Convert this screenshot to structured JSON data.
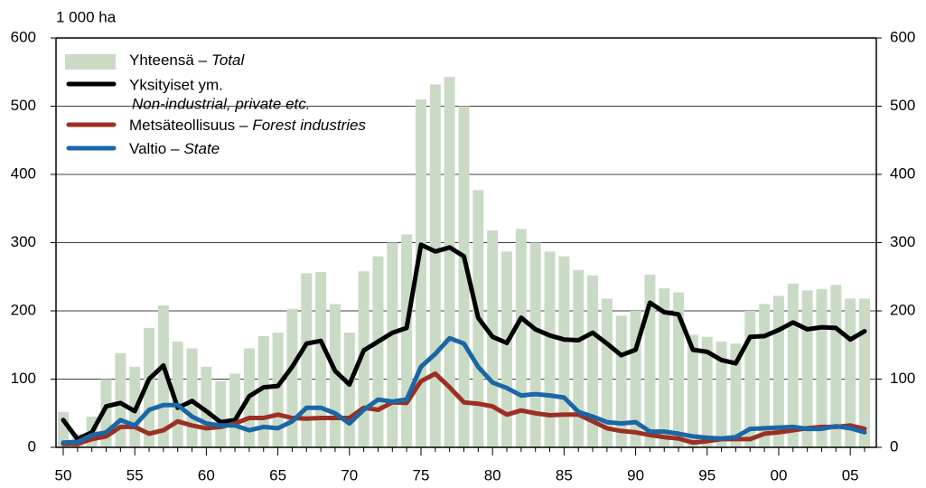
{
  "chart_data": {
    "type": "bar_line",
    "y_label": "1 000 ha",
    "categories": [
      "50",
      null,
      null,
      null,
      null,
      "55",
      null,
      null,
      null,
      null,
      "60",
      null,
      null,
      null,
      null,
      "65",
      null,
      null,
      null,
      null,
      "70",
      null,
      null,
      null,
      null,
      "75",
      null,
      null,
      null,
      null,
      "80",
      null,
      null,
      null,
      null,
      "85",
      null,
      null,
      null,
      null,
      "90",
      null,
      null,
      null,
      null,
      "95",
      null,
      null,
      null,
      null,
      "00",
      null,
      null,
      null,
      null,
      "05",
      null
    ],
    "series": [
      {
        "name": "Yhteensä –",
        "name_en": "Total",
        "kind": "bar",
        "color": "#c9dbc5",
        "values": [
          52,
          20,
          45,
          100,
          138,
          118,
          175,
          208,
          155,
          145,
          118,
          97,
          108,
          145,
          163,
          168,
          203,
          255,
          257,
          210,
          168,
          258,
          280,
          300,
          312,
          510,
          532,
          543,
          500,
          377,
          318,
          287,
          320,
          300,
          287,
          280,
          260,
          252,
          218,
          193,
          200,
          253,
          233,
          227,
          165,
          162,
          155,
          152,
          200,
          210,
          222,
          240,
          230,
          232,
          238,
          218,
          218
        ]
      },
      {
        "name": "Yksityiset ym.",
        "name_en": "Non-industrial, private etc.",
        "kind": "line",
        "color": "#000000",
        "values": [
          40,
          12,
          22,
          60,
          65,
          53,
          100,
          120,
          58,
          68,
          53,
          37,
          40,
          75,
          88,
          90,
          118,
          152,
          156,
          112,
          92,
          142,
          155,
          168,
          175,
          297,
          287,
          293,
          280,
          190,
          162,
          153,
          190,
          173,
          164,
          158,
          157,
          168,
          152,
          135,
          143,
          212,
          198,
          195,
          143,
          140,
          128,
          123,
          162,
          163,
          172,
          183,
          173,
          176,
          175,
          158,
          170
        ]
      },
      {
        "name": "Metsäteollisuus –",
        "name_en": "Forest industries",
        "kind": "line",
        "color": "#9c2f24",
        "values": [
          5,
          5,
          12,
          16,
          30,
          30,
          20,
          25,
          38,
          32,
          28,
          30,
          35,
          43,
          43,
          48,
          43,
          42,
          43,
          43,
          43,
          58,
          55,
          66,
          65,
          97,
          108,
          88,
          66,
          64,
          60,
          48,
          54,
          50,
          47,
          48,
          48,
          38,
          28,
          24,
          22,
          18,
          15,
          13,
          7,
          9,
          12,
          12,
          12,
          20,
          22,
          25,
          28,
          30,
          30,
          32,
          27
        ]
      },
      {
        "name": "Valtio –",
        "name_en": "State",
        "kind": "line",
        "color": "#1a66a6",
        "values": [
          7,
          8,
          18,
          22,
          40,
          32,
          55,
          62,
          62,
          45,
          35,
          32,
          32,
          25,
          30,
          28,
          38,
          58,
          58,
          50,
          35,
          55,
          70,
          67,
          70,
          118,
          137,
          160,
          152,
          118,
          95,
          87,
          76,
          78,
          76,
          73,
          52,
          45,
          37,
          35,
          37,
          23,
          23,
          20,
          16,
          14,
          13,
          15,
          27,
          28,
          29,
          30,
          27,
          27,
          31,
          28,
          22
        ]
      }
    ],
    "ylim": [
      0,
      600
    ],
    "yticks": [
      0,
      100,
      200,
      300,
      400,
      500,
      600
    ],
    "y2lim": [
      0,
      600
    ],
    "y2ticks": [
      0,
      100,
      200,
      300,
      400,
      500,
      600
    ],
    "grid": true,
    "legend": "top-left"
  }
}
